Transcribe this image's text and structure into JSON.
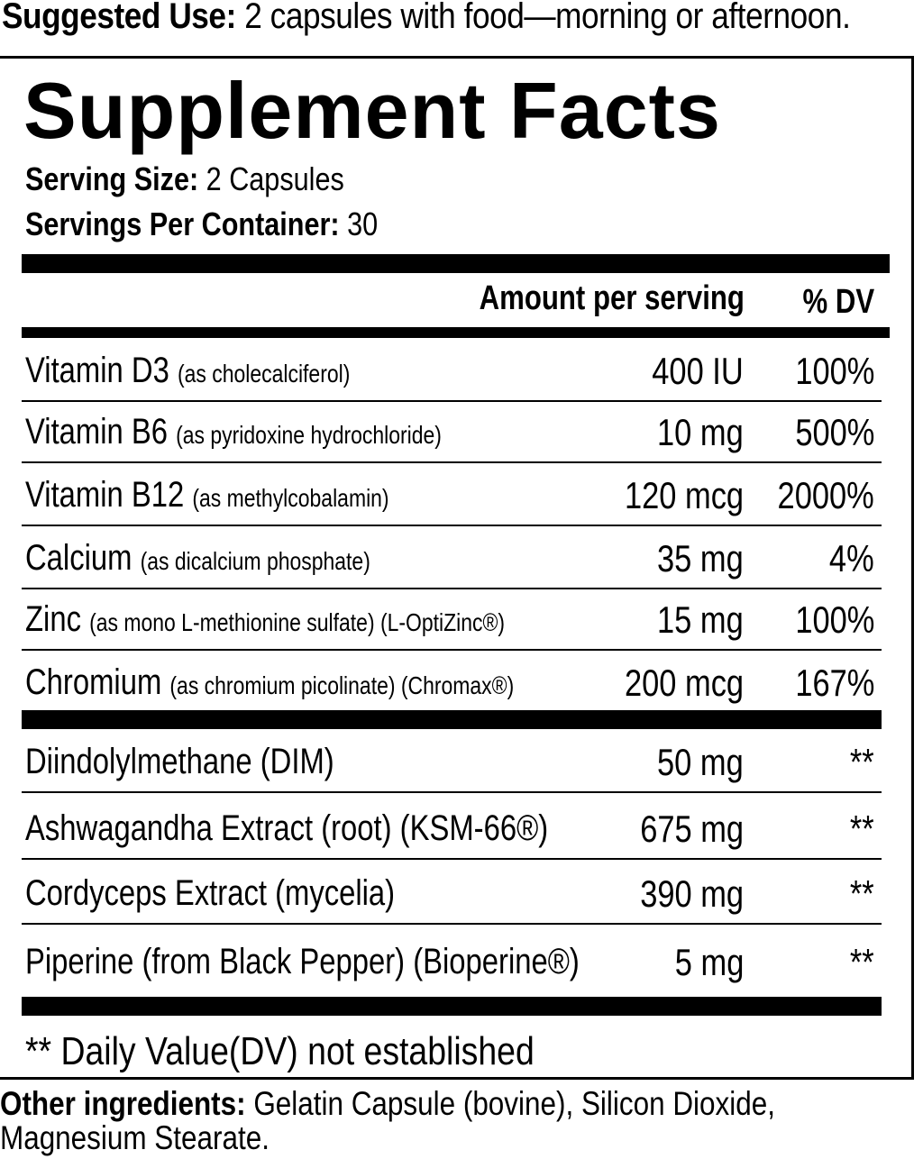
{
  "suggested_use": {
    "label": "Suggested Use:",
    "text": " 2 capsules with food—morning or afternoon."
  },
  "title": "Supplement Facts",
  "serving_size": {
    "label": "Serving Size:",
    "value": " 2 Capsules"
  },
  "servings_per_container": {
    "label": "Servings Per Container:",
    "value": " 30"
  },
  "headers": {
    "amount": "Amount per serving",
    "dv": "% DV"
  },
  "nutrients": [
    {
      "name": "Vitamin D3",
      "source": "(as cholecalciferol)",
      "amount": "400 IU",
      "dv": "100%"
    },
    {
      "name": "Vitamin B6",
      "source": "(as pyridoxine hydrochloride)",
      "amount": "10 mg",
      "dv": "500%"
    },
    {
      "name": "Vitamin B12",
      "source": "(as methylcobalamin)",
      "amount": "120 mcg",
      "dv": "2000%"
    },
    {
      "name": "Calcium",
      "source": "(as dicalcium phosphate)",
      "amount": "35 mg",
      "dv": "4%"
    },
    {
      "name": "Zinc",
      "source": "(as mono L-methionine sulfate) (L-OptiZinc®)",
      "amount": "15 mg",
      "dv": "100%"
    },
    {
      "name": "Chromium",
      "source": "(as chromium picolinate) (Chromax®)",
      "amount": "200 mcg",
      "dv": "167%"
    }
  ],
  "others": [
    {
      "name": "Diindolylmethane (DIM)",
      "amount": "50 mg",
      "dv": "**"
    },
    {
      "name": "Ashwagandha Extract (root) (KSM-66®)",
      "amount": "675 mg",
      "dv": "**"
    },
    {
      "name": "Cordyceps Extract (mycelia)",
      "amount": "390 mg",
      "dv": "**"
    },
    {
      "name": "Piperine (from Black Pepper) (Bioperine®)",
      "amount": "5 mg",
      "dv": "**"
    }
  ],
  "footnote": "** Daily Value(DV) not established",
  "other_ingredients": {
    "label": "Other ingredients:",
    "text": " Gelatin Capsule (bovine), Silicon Dioxide, Magnesium Stearate."
  }
}
